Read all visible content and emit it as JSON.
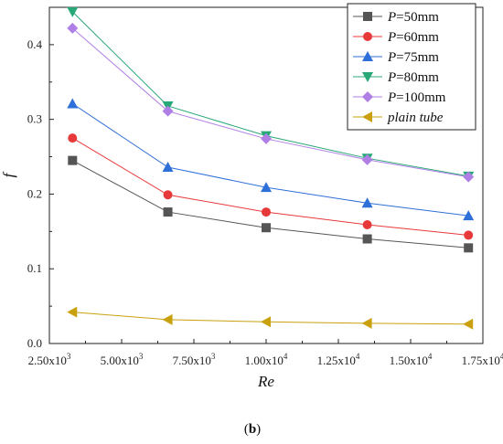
{
  "caption": {
    "prefix": "(",
    "label": "b",
    "suffix": ")"
  },
  "chart_data": {
    "type": "line",
    "xlabel": "Re",
    "ylabel": "f",
    "xlim": [
      2500,
      17500
    ],
    "ylim": [
      0,
      0.45
    ],
    "x_ticks": [
      {
        "value": 2500,
        "mant": "2.50x10",
        "exp": "3"
      },
      {
        "value": 5000,
        "mant": "5.00x10",
        "exp": "3"
      },
      {
        "value": 7500,
        "mant": "7.50x10",
        "exp": "3"
      },
      {
        "value": 10000,
        "mant": "1.00x10",
        "exp": "4"
      },
      {
        "value": 12500,
        "mant": "1.25x10",
        "exp": "4"
      },
      {
        "value": 15000,
        "mant": "1.50x10",
        "exp": "4"
      },
      {
        "value": 17500,
        "mant": "1.75x10",
        "exp": "4"
      }
    ],
    "y_ticks": [
      {
        "value": 0.0,
        "label": "0.0"
      },
      {
        "value": 0.1,
        "label": "0.1"
      },
      {
        "value": 0.2,
        "label": "0.2"
      },
      {
        "value": 0.3,
        "label": "0.3"
      },
      {
        "value": 0.4,
        "label": "0.4"
      }
    ],
    "grid": false,
    "legend_position": "top-right",
    "x": [
      3300,
      6600,
      10000,
      13500,
      17000
    ],
    "series": [
      {
        "name": "P=50mm",
        "var": "P",
        "rest": "=50mm",
        "italic": false,
        "color": "#555555",
        "marker": "square",
        "values": [
          0.245,
          0.176,
          0.155,
          0.14,
          0.128
        ]
      },
      {
        "name": "P=60mm",
        "var": "P",
        "rest": "=60mm",
        "italic": false,
        "color": "#e8393a",
        "marker": "circle",
        "values": [
          0.275,
          0.199,
          0.176,
          0.159,
          0.145
        ]
      },
      {
        "name": "P=75mm",
        "var": "P",
        "rest": "=75mm",
        "italic": false,
        "color": "#2f6fd9",
        "marker": "triangle-up",
        "values": [
          0.321,
          0.236,
          0.209,
          0.188,
          0.171
        ]
      },
      {
        "name": "P=80mm",
        "var": "P",
        "rest": "=80mm",
        "italic": false,
        "color": "#27a876",
        "marker": "triangle-down",
        "values": [
          0.444,
          0.318,
          0.278,
          0.248,
          0.224
        ]
      },
      {
        "name": "P=100mm",
        "var": "P",
        "rest": "=100mm",
        "italic": false,
        "color": "#b07fe6",
        "marker": "diamond",
        "values": [
          0.422,
          0.311,
          0.274,
          0.246,
          0.223
        ]
      },
      {
        "name": "plain tube",
        "var": "",
        "rest": "plain tube",
        "italic": true,
        "color": "#c9a00e",
        "marker": "triangle-left",
        "values": [
          0.042,
          0.032,
          0.029,
          0.027,
          0.026
        ]
      }
    ]
  }
}
